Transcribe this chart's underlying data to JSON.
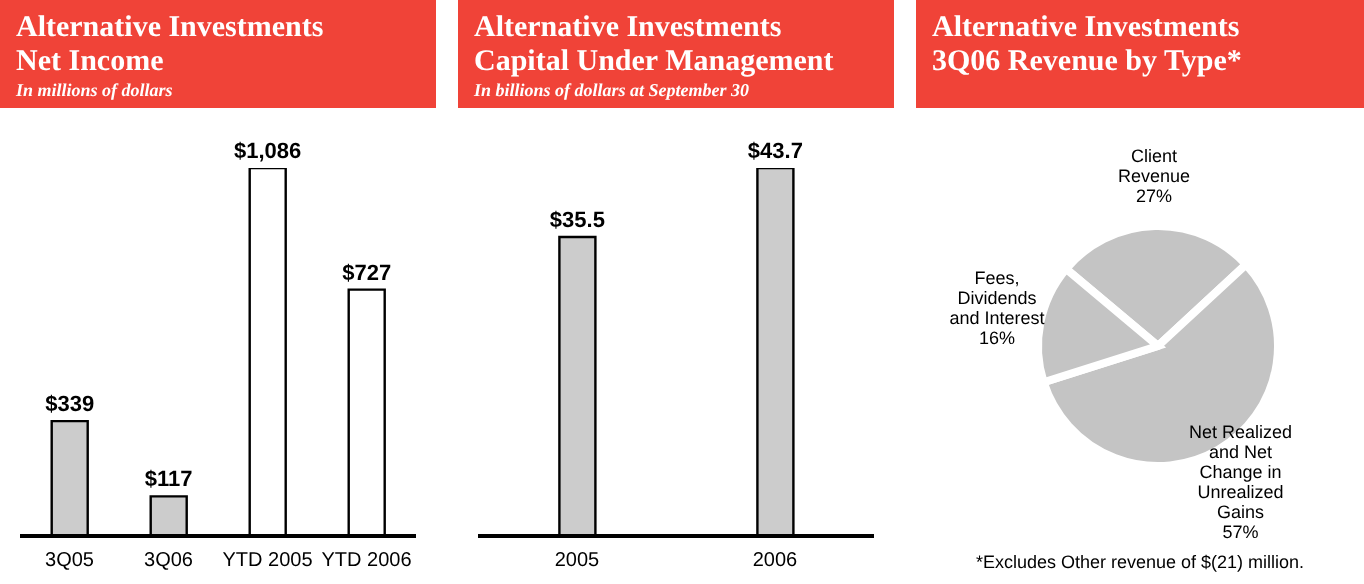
{
  "chart_data": [
    {
      "type": "bar",
      "title": "Alternative Investments\nNet Income",
      "subtitle": "In millions of dollars",
      "categories": [
        "3Q05",
        "3Q06",
        "YTD 2005",
        "YTD 2006"
      ],
      "values": [
        339,
        117,
        1086,
        727
      ],
      "colors": [
        "#cccccc",
        "#cccccc",
        "#ffffff",
        "#ffffff"
      ],
      "value_labels": [
        "$339",
        "$117",
        "$1,086",
        "$727"
      ],
      "legend": false
    },
    {
      "type": "bar",
      "title": "Alternative Investments\nCapital Under Management",
      "subtitle": "In billions of dollars at September 30",
      "categories": [
        "2005",
        "2006"
      ],
      "values": [
        35.5,
        43.7
      ],
      "colors": [
        "#cccccc",
        "#cccccc"
      ],
      "value_labels": [
        "$35.5",
        "$43.7"
      ],
      "legend": false
    },
    {
      "type": "pie",
      "title": "Alternative Investments\n3Q06 Revenue by Type*",
      "categories": [
        "Client Revenue",
        "Net Realized and Net Change in Unrealized Gains",
        "Fees, Dividends and Interest"
      ],
      "values": [
        27,
        57,
        16
      ],
      "colors": [
        "#c4c4c4",
        "#c4c4c4",
        "#c4c4c4"
      ],
      "value_labels": [
        "27%",
        "57%",
        "16%"
      ],
      "annotations": [
        "*Excludes Other revenue of $(21) million."
      ],
      "legend": false
    }
  ]
}
